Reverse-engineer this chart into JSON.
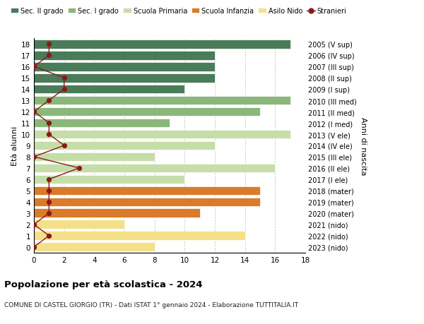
{
  "ages": [
    18,
    17,
    16,
    15,
    14,
    13,
    12,
    11,
    10,
    9,
    8,
    7,
    6,
    5,
    4,
    3,
    2,
    1,
    0
  ],
  "years": [
    "2005 (V sup)",
    "2006 (IV sup)",
    "2007 (III sup)",
    "2008 (II sup)",
    "2009 (I sup)",
    "2010 (III med)",
    "2011 (II med)",
    "2012 (I med)",
    "2013 (V ele)",
    "2014 (IV ele)",
    "2015 (III ele)",
    "2016 (II ele)",
    "2017 (I ele)",
    "2018 (mater)",
    "2019 (mater)",
    "2020 (mater)",
    "2021 (nido)",
    "2022 (nido)",
    "2023 (nido)"
  ],
  "bar_values": [
    17,
    12,
    12,
    12,
    10,
    17,
    15,
    9,
    17,
    12,
    8,
    16,
    10,
    15,
    15,
    11,
    6,
    14,
    8
  ],
  "bar_colors": [
    "#4a7c59",
    "#4a7c59",
    "#4a7c59",
    "#4a7c59",
    "#4a7c59",
    "#8ab87a",
    "#8ab87a",
    "#8ab87a",
    "#c5dea8",
    "#c5dea8",
    "#c5dea8",
    "#c5dea8",
    "#c5dea8",
    "#d97b2a",
    "#d97b2a",
    "#d97b2a",
    "#f5e08a",
    "#f5e08a",
    "#f5e08a"
  ],
  "stranieri_values": [
    1,
    1,
    0,
    2,
    2,
    1,
    0,
    1,
    1,
    2,
    0,
    3,
    1,
    1,
    1,
    1,
    0,
    1,
    0
  ],
  "stranieri_color": "#8b1a1a",
  "title_main": "Popolazione per età scolastica - 2024",
  "title_sub": "COMUNE DI CASTEL GIORGIO (TR) - Dati ISTAT 1° gennaio 2024 - Elaborazione TUTTITALIA.IT",
  "ylabel_left": "Età alunni",
  "ylabel_right": "Anni di nascita",
  "xlim": [
    0,
    18
  ],
  "xticks": [
    0,
    2,
    4,
    6,
    8,
    10,
    12,
    14,
    16,
    18
  ],
  "legend_items": [
    {
      "label": "Sec. II grado",
      "color": "#4a7c59",
      "type": "patch"
    },
    {
      "label": "Sec. I grado",
      "color": "#8ab87a",
      "type": "patch"
    },
    {
      "label": "Scuola Primaria",
      "color": "#c5dea8",
      "type": "patch"
    },
    {
      "label": "Scuola Infanzia",
      "color": "#d97b2a",
      "type": "patch"
    },
    {
      "label": "Asilo Nido",
      "color": "#f5e08a",
      "type": "patch"
    },
    {
      "label": "Stranieri",
      "color": "#8b1a1a",
      "type": "line"
    }
  ],
  "bar_height": 0.8,
  "background_color": "#ffffff",
  "grid_color": "#cccccc"
}
